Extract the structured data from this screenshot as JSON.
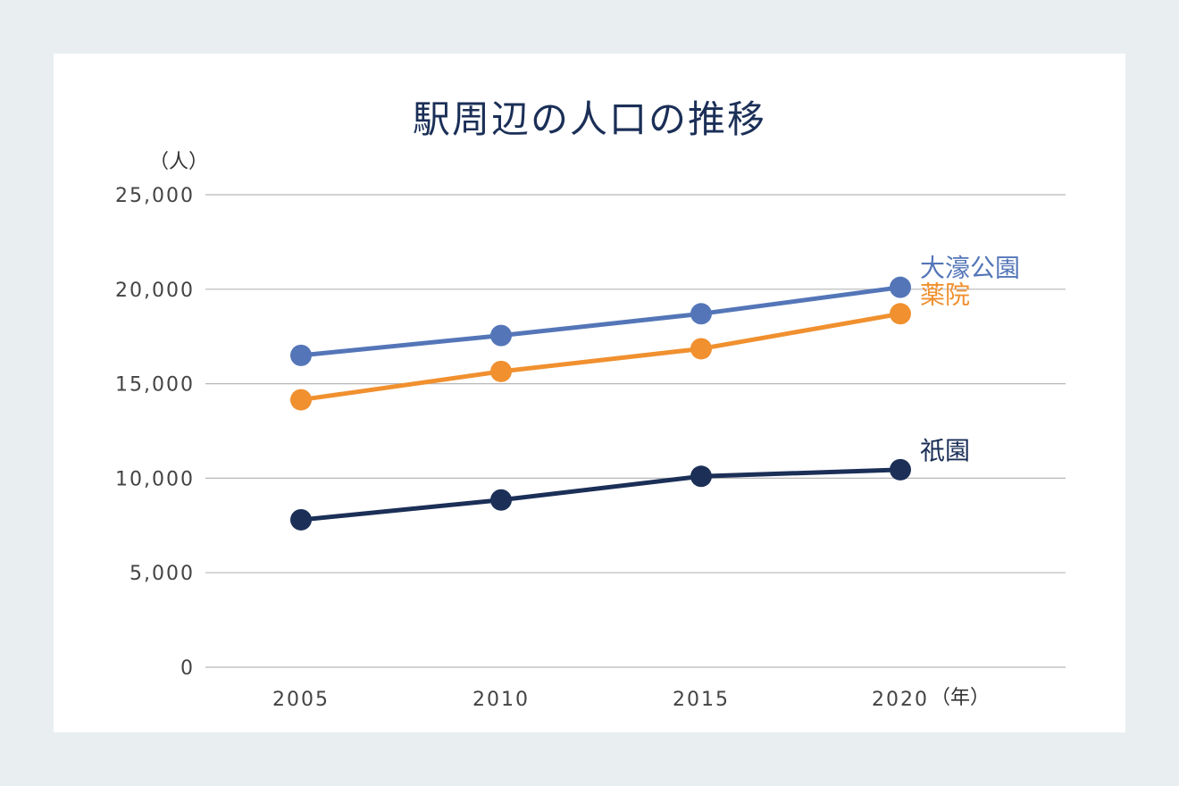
{
  "chart_data": {
    "type": "line",
    "title": "駅周辺の人口の推移",
    "ylabel": "（人）",
    "xlabel": "（年）",
    "ylim": [
      0,
      25000
    ],
    "yticks": [
      0,
      5000,
      10000,
      15000,
      20000,
      25000
    ],
    "ytick_labels": [
      "0",
      "5,000",
      "10,000",
      "15,000",
      "20,000",
      "25,000"
    ],
    "categories": [
      "2005",
      "2010",
      "2015",
      "2020"
    ],
    "grid": true,
    "legend": "line-end labels (right)",
    "series": [
      {
        "name": "大濠公園",
        "color": "#5476b8",
        "values": [
          16500,
          17550,
          18700,
          20100
        ]
      },
      {
        "name": "薬院",
        "color": "#f0902f",
        "values": [
          14150,
          15650,
          16850,
          18700
        ]
      },
      {
        "name": "祇園",
        "color": "#1b2f57",
        "values": [
          7800,
          8850,
          10100,
          10450
        ]
      }
    ]
  }
}
